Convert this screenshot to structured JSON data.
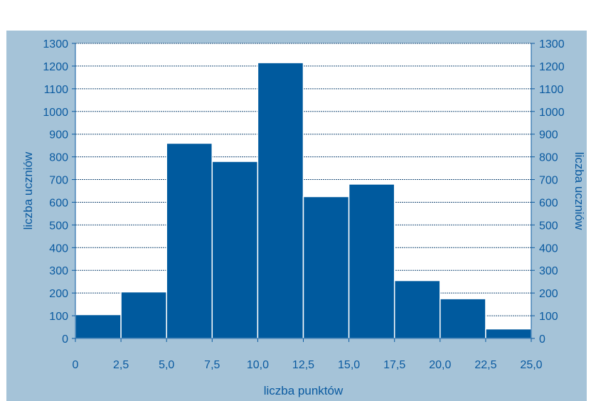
{
  "colors": {
    "background": "#a5c3d8",
    "plot_area": "#ffffff",
    "bar_fill": "#005a9e",
    "bar_stroke": "#ffffff",
    "text": "#0a5aa0",
    "gridline": "#1f4e79"
  },
  "chart_data": {
    "type": "bar",
    "title": "",
    "xlabel": "liczba punktów",
    "ylabel": "liczba uczniów",
    "ylabel_right": "liczba uczniów",
    "xlim": [
      0,
      25
    ],
    "ylim": [
      0,
      1300
    ],
    "grid": true,
    "legend": "none",
    "x_ticks": [
      "0",
      "2,5",
      "5,0",
      "7,5",
      "10,0",
      "12,5",
      "15,0",
      "17,5",
      "20,0",
      "22,5",
      "25,0"
    ],
    "y_ticks": [
      "0",
      "100",
      "200",
      "300",
      "400",
      "500",
      "600",
      "700",
      "800",
      "900",
      "1000",
      "1100",
      "1200",
      "1300"
    ],
    "bins": [
      {
        "from": 0,
        "to": 2.5,
        "value": 105
      },
      {
        "from": 2.5,
        "to": 5.0,
        "value": 205
      },
      {
        "from": 5.0,
        "to": 7.5,
        "value": 860
      },
      {
        "from": 7.5,
        "to": 10.0,
        "value": 780
      },
      {
        "from": 10.0,
        "to": 12.5,
        "value": 1215
      },
      {
        "from": 12.5,
        "to": 15.0,
        "value": 625
      },
      {
        "from": 15.0,
        "to": 17.5,
        "value": 680
      },
      {
        "from": 17.5,
        "to": 20.0,
        "value": 255
      },
      {
        "from": 20.0,
        "to": 22.5,
        "value": 175
      },
      {
        "from": 22.5,
        "to": 25.0,
        "value": 42
      }
    ]
  }
}
